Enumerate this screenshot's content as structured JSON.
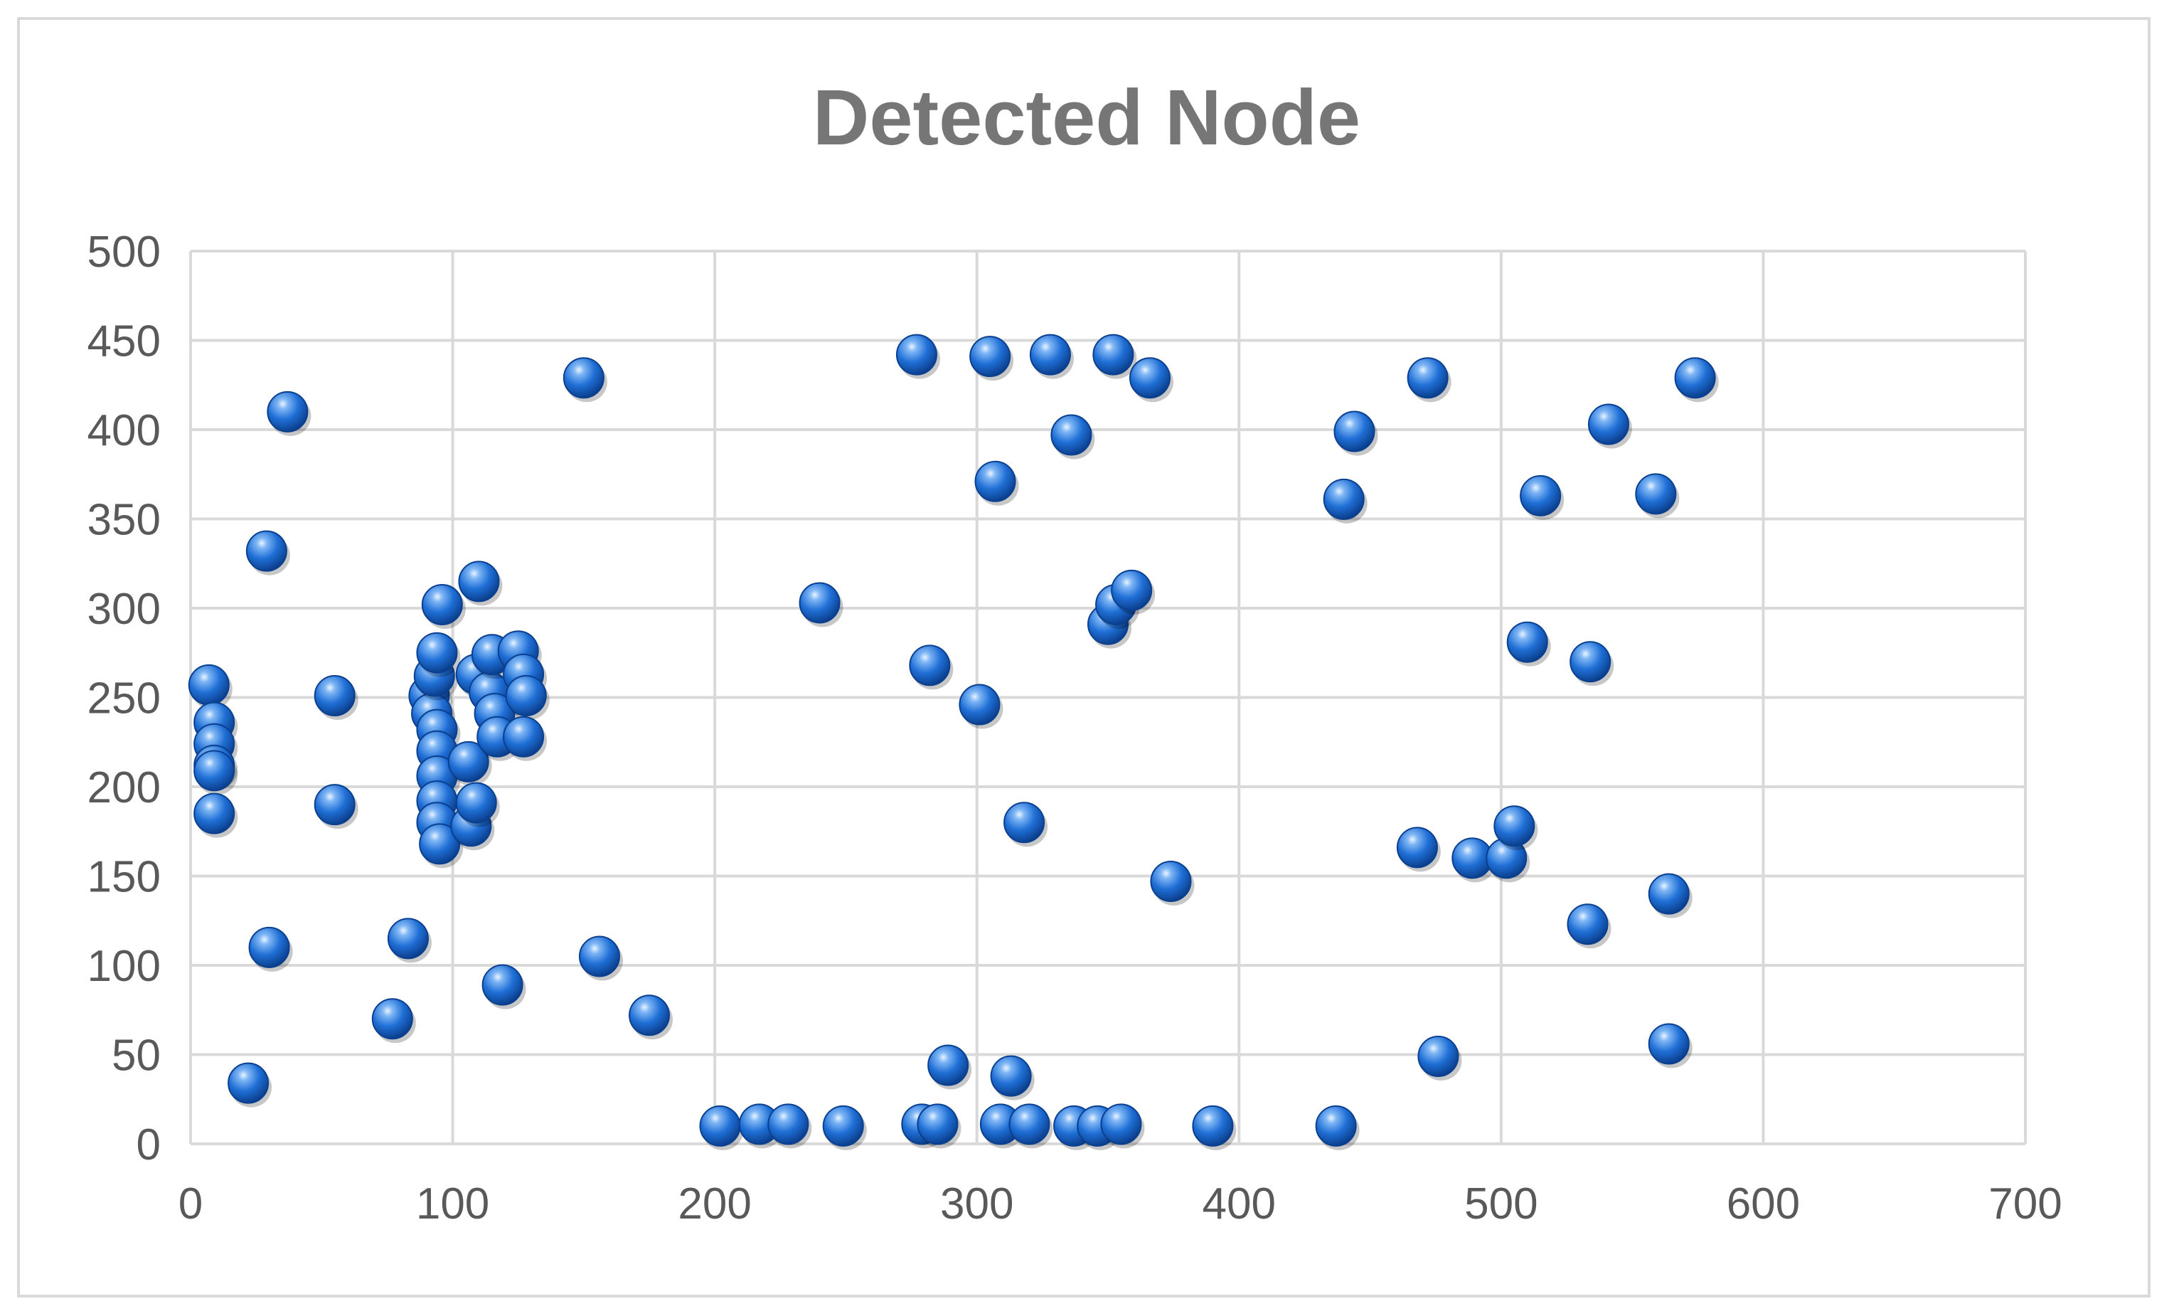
{
  "chart_data": {
    "type": "scatter",
    "title": "Detected Node",
    "xlabel": "",
    "ylabel": "",
    "xlim": [
      0,
      700
    ],
    "ylim": [
      0,
      500
    ],
    "xticks": [
      0,
      100,
      200,
      300,
      400,
      500,
      600,
      700
    ],
    "yticks": [
      0,
      50,
      100,
      150,
      200,
      250,
      300,
      350,
      400,
      450,
      500
    ],
    "xtick_labels": [
      "0",
      "100",
      "200",
      "300",
      "400",
      "500",
      "600",
      "700"
    ],
    "ytick_labels": [
      "0",
      "50",
      "100",
      "150",
      "200",
      "250",
      "300",
      "350",
      "400",
      "450",
      "500"
    ],
    "grid": true,
    "legend": "none",
    "marker_color": "#1f6fd6",
    "series": [
      {
        "points": [
          [
            7,
            257
          ],
          [
            9,
            236
          ],
          [
            9,
            224
          ],
          [
            9,
            212
          ],
          [
            9,
            209
          ],
          [
            9,
            185
          ],
          [
            22,
            34
          ],
          [
            29,
            332
          ],
          [
            30,
            110
          ],
          [
            37,
            410
          ],
          [
            55,
            251
          ],
          [
            55,
            190
          ],
          [
            77,
            70
          ],
          [
            83,
            115
          ],
          [
            91,
            251
          ],
          [
            92,
            241
          ],
          [
            93,
            262
          ],
          [
            94,
            275
          ],
          [
            94,
            232
          ],
          [
            94,
            220
          ],
          [
            94,
            206
          ],
          [
            94,
            192
          ],
          [
            94,
            180
          ],
          [
            95,
            168
          ],
          [
            96,
            302
          ],
          [
            106,
            214
          ],
          [
            107,
            178
          ],
          [
            109,
            191
          ],
          [
            109,
            263
          ],
          [
            110,
            315
          ],
          [
            114,
            253
          ],
          [
            115,
            274
          ],
          [
            116,
            241
          ],
          [
            117,
            228
          ],
          [
            119,
            89
          ],
          [
            125,
            276
          ],
          [
            127,
            263
          ],
          [
            128,
            251
          ],
          [
            127,
            228
          ],
          [
            150,
            429
          ],
          [
            156,
            105
          ],
          [
            175,
            72
          ],
          [
            202,
            10
          ],
          [
            217,
            11
          ],
          [
            228,
            11
          ],
          [
            249,
            10
          ],
          [
            240,
            303
          ],
          [
            277,
            442
          ],
          [
            279,
            11
          ],
          [
            285,
            11
          ],
          [
            282,
            268
          ],
          [
            289,
            44
          ],
          [
            301,
            246
          ],
          [
            305,
            441
          ],
          [
            307,
            371
          ],
          [
            309,
            11
          ],
          [
            313,
            38
          ],
          [
            318,
            180
          ],
          [
            320,
            11
          ],
          [
            328,
            442
          ],
          [
            336,
            397
          ],
          [
            337,
            10
          ],
          [
            346,
            10
          ],
          [
            350,
            291
          ],
          [
            352,
            442
          ],
          [
            355,
            11
          ],
          [
            353,
            302
          ],
          [
            359,
            310
          ],
          [
            366,
            429
          ],
          [
            374,
            147
          ],
          [
            390,
            10
          ],
          [
            437,
            10
          ],
          [
            440,
            361
          ],
          [
            444,
            399
          ],
          [
            468,
            166
          ],
          [
            472,
            429
          ],
          [
            476,
            49
          ],
          [
            489,
            160
          ],
          [
            502,
            160
          ],
          [
            505,
            178
          ],
          [
            510,
            281
          ],
          [
            515,
            363
          ],
          [
            533,
            123
          ],
          [
            534,
            270
          ],
          [
            541,
            403
          ],
          [
            559,
            364
          ],
          [
            564,
            140
          ],
          [
            564,
            56
          ],
          [
            574,
            429
          ]
        ]
      }
    ]
  }
}
